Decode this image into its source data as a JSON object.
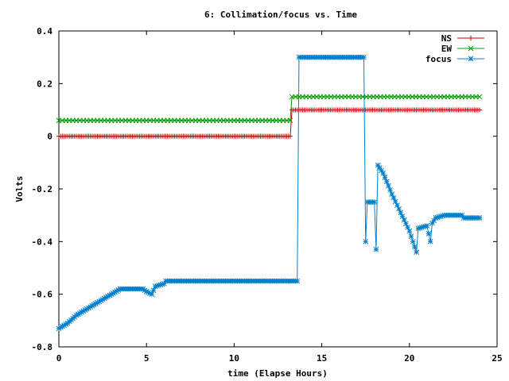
{
  "chart_data": {
    "type": "line",
    "title": "6: Collimation/focus vs. Time",
    "xlabel": "time (Elapse Hours)",
    "ylabel": "Volts",
    "xlim": [
      0,
      25
    ],
    "ylim": [
      -0.8,
      0.4
    ],
    "x_ticks": [
      0,
      5,
      10,
      15,
      20,
      25
    ],
    "y_ticks": [
      -0.8,
      -0.6,
      -0.4,
      -0.2,
      0,
      0.2,
      0.4
    ],
    "x_tick_labels": [
      "0",
      "5",
      "10",
      "15",
      "20",
      "25"
    ],
    "y_tick_labels": [
      "-0.8",
      "-0.6",
      "-0.4",
      "-0.2",
      "0",
      "0.2",
      "0.4"
    ],
    "grid": false,
    "legend_position": "top-right",
    "series": [
      {
        "name": "NS",
        "color": "#cc0000",
        "marker": "plus",
        "points": [
          [
            0,
            0.0
          ],
          [
            13.2,
            0.0
          ],
          [
            13.3,
            0.1
          ],
          [
            24,
            0.1
          ]
        ],
        "sample_step": 0.1
      },
      {
        "name": "EW",
        "color": "#009900",
        "marker": "cross",
        "points": [
          [
            0,
            0.06
          ],
          [
            13.2,
            0.06
          ],
          [
            13.3,
            0.15
          ],
          [
            24,
            0.15
          ]
        ],
        "sample_step": 0.2
      },
      {
        "name": "focus",
        "color": "#0080cc",
        "marker": "star",
        "points": [
          [
            0,
            -0.73
          ],
          [
            0.5,
            -0.71
          ],
          [
            1.0,
            -0.68
          ],
          [
            1.5,
            -0.66
          ],
          [
            2.0,
            -0.64
          ],
          [
            2.5,
            -0.62
          ],
          [
            3.0,
            -0.6
          ],
          [
            3.5,
            -0.58
          ],
          [
            4.0,
            -0.58
          ],
          [
            4.8,
            -0.58
          ],
          [
            5.0,
            -0.59
          ],
          [
            5.3,
            -0.6
          ],
          [
            5.5,
            -0.57
          ],
          [
            6.0,
            -0.56
          ],
          [
            6.1,
            -0.55
          ],
          [
            13.6,
            -0.55
          ],
          [
            13.7,
            0.3
          ],
          [
            17.4,
            0.3
          ],
          [
            17.5,
            -0.4
          ],
          [
            17.6,
            -0.25
          ],
          [
            18.0,
            -0.25
          ],
          [
            18.1,
            -0.43
          ],
          [
            18.2,
            -0.11
          ],
          [
            18.5,
            -0.14
          ],
          [
            19.0,
            -0.22
          ],
          [
            19.5,
            -0.29
          ],
          [
            20.0,
            -0.36
          ],
          [
            20.4,
            -0.44
          ],
          [
            20.5,
            -0.35
          ],
          [
            21.0,
            -0.34
          ],
          [
            21.2,
            -0.4
          ],
          [
            21.3,
            -0.33
          ],
          [
            21.5,
            -0.31
          ],
          [
            22.0,
            -0.3
          ],
          [
            23.0,
            -0.3
          ],
          [
            23.1,
            -0.31
          ],
          [
            24,
            -0.31
          ]
        ],
        "sample_step": 0.1
      }
    ]
  }
}
